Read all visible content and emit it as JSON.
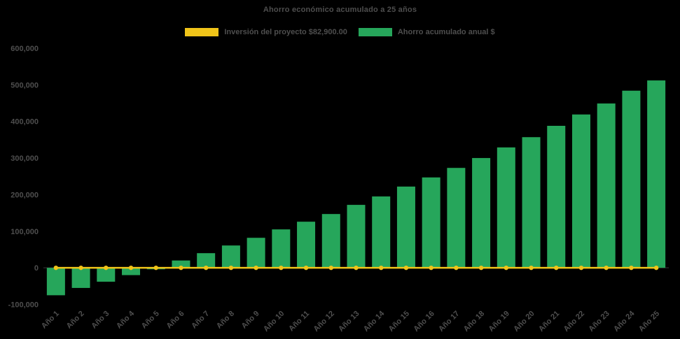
{
  "chart": {
    "title": "Ahorro económico acumulado a 25 años",
    "legend": [
      {
        "label": "Inversión del proyecto $82,900.00",
        "color": "#F0C419"
      },
      {
        "label": "Ahorro acumulado anual $",
        "color": "#26A65B"
      }
    ]
  },
  "chart_data": {
    "type": "bar",
    "title": "Ahorro económico acumulado a 25 años",
    "categories": [
      "Año 1",
      "Año 2",
      "Año 3",
      "Año 4",
      "Año 5",
      "Año 6",
      "Año 7",
      "Año 8",
      "Año 9",
      "Año 10",
      "Año 11",
      "Año 12",
      "Año 13",
      "Año 14",
      "Año 15",
      "Año 16",
      "Año 17",
      "Año 18",
      "Año 19",
      "Año 20",
      "Año 21",
      "Año 22",
      "Año 23",
      "Año 24",
      "Año 25"
    ],
    "series": [
      {
        "name": "Inversión del proyecto $82,900.00",
        "type": "line",
        "color": "#F0C419",
        "values": [
          0,
          0,
          0,
          0,
          0,
          0,
          0,
          0,
          0,
          0,
          0,
          0,
          0,
          0,
          0,
          0,
          0,
          0,
          0,
          0,
          0,
          0,
          0,
          0,
          0
        ]
      },
      {
        "name": "Ahorro acumulado anual $",
        "type": "bar",
        "color": "#26A65B",
        "values": [
          -75000,
          -55000,
          -38000,
          -20000,
          -4000,
          20000,
          40000,
          61000,
          82000,
          105000,
          126000,
          147000,
          172000,
          195000,
          222000,
          247000,
          273000,
          300000,
          329000,
          357000,
          388000,
          419000,
          449000,
          484000,
          512000
        ]
      }
    ],
    "xlabel": "",
    "ylabel": "",
    "ylim": [
      -100000,
      600000
    ],
    "y_ticks": [
      -100000,
      0,
      100000,
      200000,
      300000,
      400000,
      500000,
      600000
    ],
    "y_tick_labels": [
      "-100,000",
      "0",
      "100,000",
      "200,000",
      "300,000",
      "400,000",
      "500,000",
      "600,000"
    ],
    "grid": false,
    "legend_position": "top"
  },
  "colors": {
    "background": "#000000",
    "text": "#4e4e4e",
    "zero_line": "#3a3a3a"
  }
}
